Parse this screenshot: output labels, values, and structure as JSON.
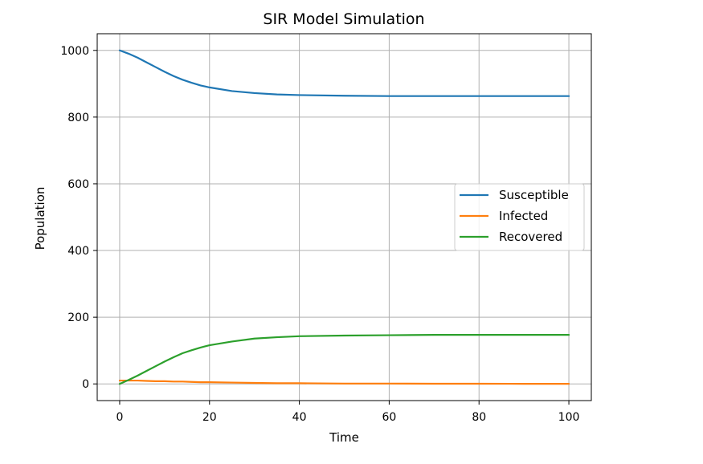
{
  "chart_data": {
    "type": "line",
    "title": "SIR Model Simulation",
    "xlabel": "Time",
    "ylabel": "Population",
    "xlim": [
      -5,
      105
    ],
    "ylim": [
      -50,
      1050
    ],
    "xticks": [
      0,
      20,
      40,
      60,
      80,
      100
    ],
    "yticks": [
      0,
      200,
      400,
      600,
      800,
      1000
    ],
    "grid": true,
    "legend_position": "center-right",
    "x": [
      0,
      2,
      4,
      6,
      8,
      10,
      12,
      14,
      16,
      18,
      20,
      25,
      30,
      35,
      40,
      50,
      60,
      70,
      80,
      90,
      100
    ],
    "series": [
      {
        "name": "Susceptible",
        "color": "#1f77b4",
        "values": [
          1000,
          990,
          978,
          964,
          950,
          936,
          923,
          912,
          903,
          895,
          889,
          878,
          872,
          868,
          866,
          864,
          863,
          863,
          863,
          863,
          863
        ]
      },
      {
        "name": "Infected",
        "color": "#ff7f0e",
        "values": [
          10,
          10,
          10,
          9,
          8,
          8,
          7,
          7,
          6,
          5,
          5,
          4,
          3,
          2,
          2,
          1,
          1,
          0.5,
          0.5,
          0.3,
          0.2
        ]
      },
      {
        "name": "Recovered",
        "color": "#2ca02c",
        "values": [
          0,
          12,
          25,
          39,
          53,
          67,
          80,
          92,
          101,
          109,
          116,
          127,
          136,
          140,
          143,
          145,
          146,
          147,
          147,
          147,
          147
        ]
      }
    ]
  }
}
